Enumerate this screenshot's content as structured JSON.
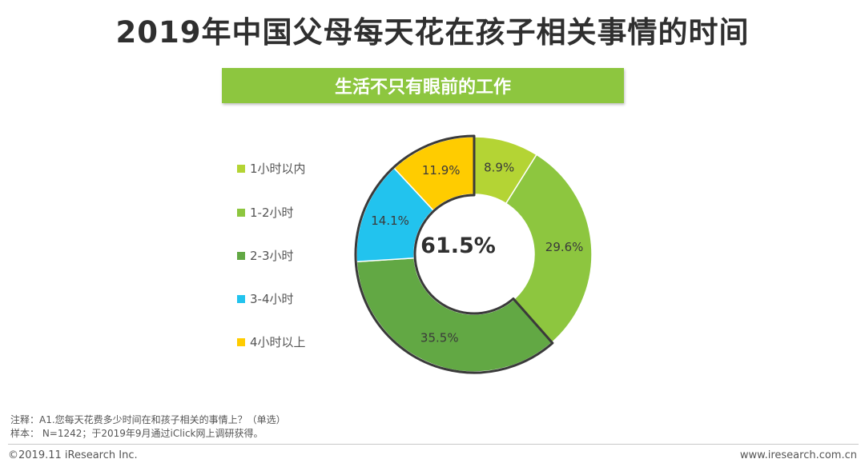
{
  "header": {
    "title": "2019年中国父母每天花在孩子相关事情的时间",
    "subtitle": "生活不只有眼前的工作"
  },
  "chart_data": {
    "type": "pie",
    "variant": "donut",
    "center_label": "61.5%",
    "categories": [
      "1小时以内",
      "1-2小时",
      "2-3小时",
      "3-4小时",
      "4小时以上"
    ],
    "values": [
      8.9,
      29.6,
      35.5,
      14.1,
      11.9
    ],
    "labels": [
      "8.9%",
      "29.6%",
      "35.5%",
      "14.1%",
      "11.9%"
    ],
    "colors": [
      "#b4d434",
      "#8dc63f",
      "#62a844",
      "#22c3ee",
      "#ffcc00"
    ],
    "highlighted_categories": [
      "2-3小时",
      "3-4小时",
      "4小时以上"
    ],
    "legend_position": "left",
    "start_angle_deg": 0,
    "direction": "clockwise"
  },
  "footnotes": {
    "note": "注释：A1.您每天花费多少时间在和孩子相关的事情上？（单选）",
    "sample": "样本： N=1242；于2019年9月通过iClick网上调研获得。"
  },
  "footer": {
    "copyright": "©2019.11 iResearch Inc.",
    "website": "www.iresearch.com.cn"
  }
}
